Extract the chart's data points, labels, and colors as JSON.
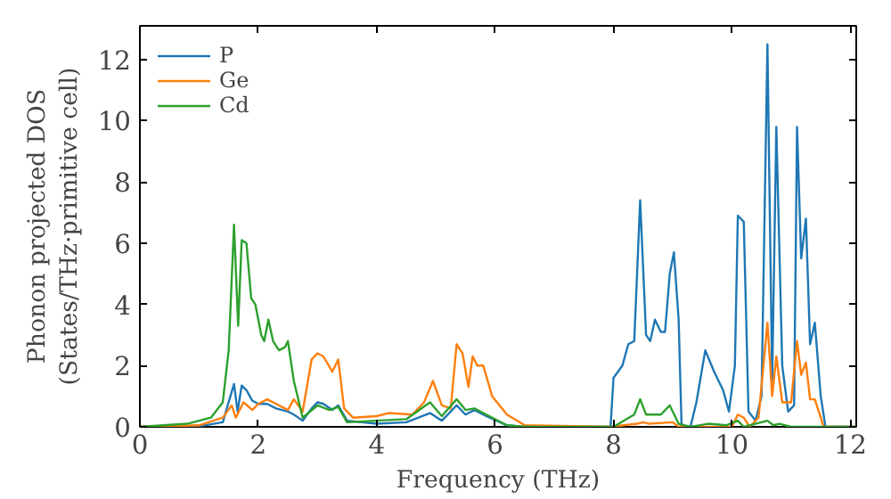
{
  "chart_data": {
    "type": "line",
    "xlabel": "Frequency (THz)",
    "ylabel": "Phonon projected DOS\n(States/THz·primitive cell)",
    "xlim": [
      0,
      12.1
    ],
    "ylim": [
      0,
      13.1
    ],
    "xticks": [
      0,
      2,
      4,
      6,
      8,
      10,
      12
    ],
    "yticks": [
      0,
      2,
      4,
      6,
      8,
      10,
      12
    ],
    "grid": false,
    "legend": "top left",
    "marker": "none",
    "line_style": "solid",
    "series": [
      {
        "name": "P",
        "color": "#1f77b4",
        "x": [
          0,
          1,
          1.4,
          1.59,
          1.65,
          1.72,
          1.8,
          1.9,
          2.0,
          2.15,
          2.3,
          2.5,
          2.6,
          2.75,
          2.9,
          3.0,
          3.1,
          3.25,
          3.35,
          3.5,
          4.0,
          4.5,
          4.9,
          5.1,
          5.35,
          5.5,
          5.65,
          5.85,
          6.2,
          6.5,
          7.95,
          8.0,
          8.15,
          8.25,
          8.35,
          8.45,
          8.55,
          8.62,
          8.7,
          8.8,
          8.87,
          8.95,
          9.02,
          9.1,
          9.15,
          9.3,
          9.4,
          9.55,
          9.7,
          9.85,
          9.95,
          10.05,
          10.1,
          10.2,
          10.28,
          10.4,
          10.5,
          10.6,
          10.68,
          10.75,
          10.85,
          10.95,
          11.05,
          11.1,
          11.17,
          11.25,
          11.32,
          11.4,
          11.5,
          11.58,
          12.1
        ],
        "values": [
          0,
          0.02,
          0.15,
          1.4,
          0.5,
          1.35,
          1.2,
          0.85,
          0.75,
          0.75,
          0.6,
          0.5,
          0.4,
          0.2,
          0.6,
          0.8,
          0.75,
          0.55,
          0.7,
          0.2,
          0.1,
          0.15,
          0.45,
          0.2,
          0.7,
          0.4,
          0.55,
          0.35,
          0.05,
          0,
          0,
          1.6,
          2.0,
          2.7,
          2.8,
          7.4,
          3.0,
          2.8,
          3.5,
          3.1,
          3.1,
          5.0,
          5.7,
          3.5,
          0,
          0,
          0.8,
          2.5,
          1.8,
          1.2,
          0.5,
          2.0,
          6.9,
          6.7,
          0.5,
          0.2,
          1.0,
          12.5,
          1.5,
          9.8,
          2.0,
          0.5,
          0.7,
          9.8,
          5.5,
          6.8,
          2.7,
          3.4,
          1.0,
          0,
          0
        ]
      },
      {
        "name": "Ge",
        "color": "#ff7f0e",
        "x": [
          0,
          1.0,
          1.4,
          1.55,
          1.62,
          1.75,
          1.9,
          2.0,
          2.15,
          2.3,
          2.5,
          2.6,
          2.75,
          2.9,
          3.0,
          3.1,
          3.25,
          3.35,
          3.45,
          3.6,
          4.0,
          4.2,
          4.6,
          4.8,
          4.95,
          5.1,
          5.25,
          5.35,
          5.45,
          5.55,
          5.62,
          5.7,
          5.8,
          5.95,
          6.2,
          6.5,
          7.95,
          8.4,
          8.5,
          8.6,
          9.0,
          9.1,
          10.0,
          10.1,
          10.2,
          10.3,
          10.45,
          10.6,
          10.68,
          10.75,
          10.85,
          11.0,
          11.1,
          11.17,
          11.25,
          11.32,
          11.4,
          11.5,
          11.55,
          12.1
        ],
        "values": [
          0,
          0.05,
          0.3,
          0.7,
          0.3,
          0.8,
          0.55,
          0.75,
          0.9,
          0.75,
          0.55,
          0.9,
          0.5,
          2.2,
          2.4,
          2.3,
          1.8,
          2.2,
          0.6,
          0.3,
          0.35,
          0.45,
          0.4,
          0.8,
          1.5,
          0.7,
          0.6,
          2.7,
          2.4,
          1.3,
          2.3,
          2.0,
          2.0,
          1.0,
          0.4,
          0.05,
          0,
          0.1,
          0.15,
          0.1,
          0.15,
          0,
          0,
          0.4,
          0.3,
          0,
          0.3,
          3.4,
          1.0,
          2.3,
          0.8,
          0.8,
          2.8,
          1.7,
          2.1,
          0.9,
          0.9,
          0.3,
          0,
          0
        ]
      },
      {
        "name": "Cd",
        "color": "#2ca02c",
        "x": [
          0,
          0.8,
          1.2,
          1.4,
          1.5,
          1.59,
          1.66,
          1.72,
          1.8,
          1.88,
          1.95,
          2.05,
          2.1,
          2.17,
          2.25,
          2.35,
          2.45,
          2.5,
          2.6,
          2.75,
          3.0,
          3.2,
          3.35,
          3.5,
          4.0,
          4.5,
          4.9,
          5.1,
          5.35,
          5.5,
          5.65,
          5.85,
          6.2,
          6.5,
          8.0,
          8.35,
          8.45,
          8.55,
          8.8,
          8.95,
          9.1,
          9.3,
          9.6,
          9.9,
          10.1,
          10.2,
          10.6,
          10.7,
          10.8,
          11.0,
          12.1
        ],
        "values": [
          0,
          0.1,
          0.3,
          0.8,
          2.5,
          6.6,
          3.3,
          6.1,
          6.0,
          4.2,
          4.0,
          3.0,
          2.8,
          3.5,
          2.8,
          2.5,
          2.6,
          2.8,
          1.5,
          0.3,
          0.7,
          0.55,
          0.65,
          0.15,
          0.2,
          0.25,
          0.8,
          0.35,
          0.9,
          0.55,
          0.6,
          0.4,
          0.05,
          0,
          0,
          0.4,
          0.9,
          0.4,
          0.4,
          0.7,
          0.1,
          0,
          0.1,
          0.05,
          0.2,
          0,
          0.2,
          0.05,
          0.1,
          0,
          0
        ]
      }
    ]
  }
}
